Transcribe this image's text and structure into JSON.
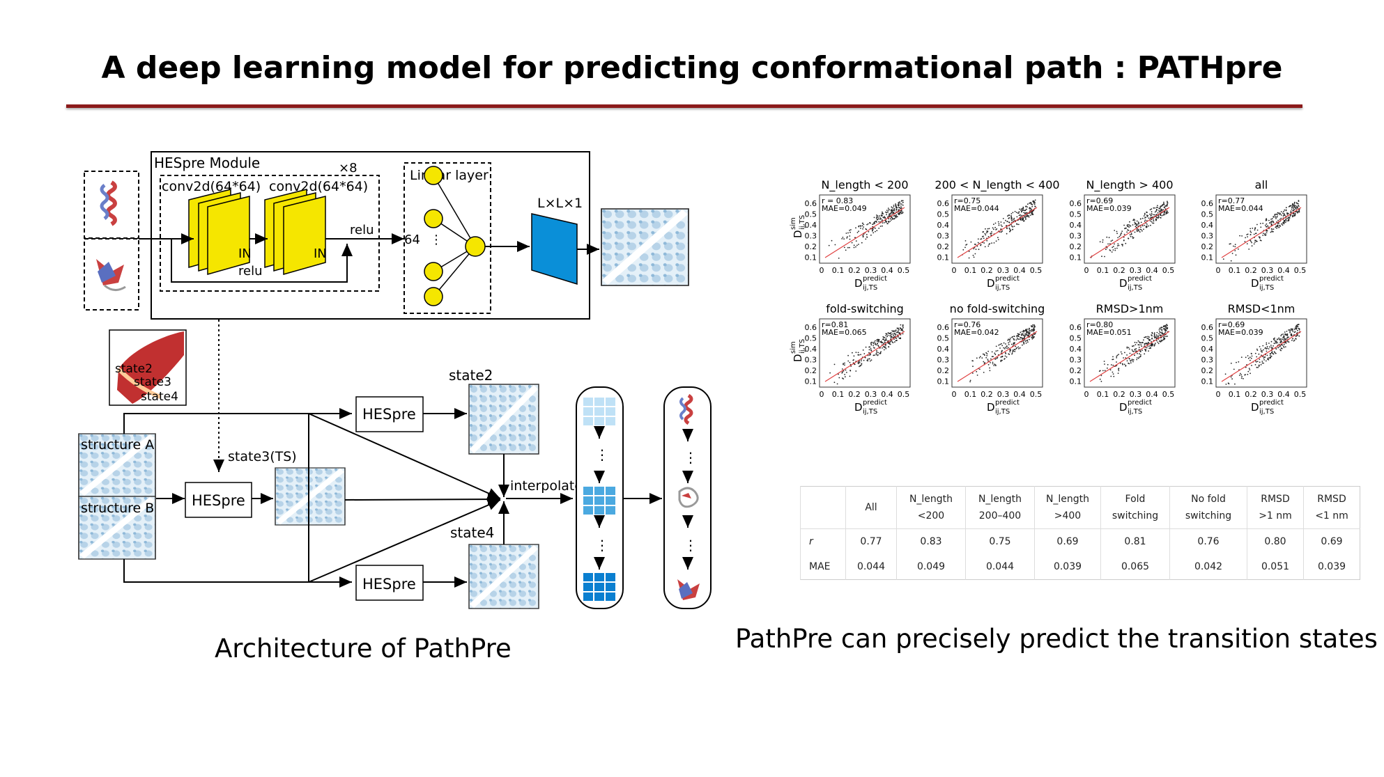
{
  "title": "A deep learning model for predicting conformational path : PATHpre",
  "captions": {
    "left": "Architecture of PathPre",
    "right": "PathPre can precisely predict the transition states"
  },
  "diagram": {
    "hespre_module_label": "HESpre Module",
    "repeat_label": "×8",
    "conv1_label": "conv2d(64*64)",
    "conv2_label": "conv2d(64*64)",
    "in_label_1": "IN",
    "in_label_2": "IN",
    "relu_label_1": "relu",
    "relu_label_2": "relu",
    "linear_layer_label": "Linear layer",
    "dim_label": "64",
    "output_label": "L×L×1",
    "state_labels": [
      "state2",
      "state3",
      "state4"
    ],
    "structure_a": "structure A",
    "structure_b": "structure B",
    "hespre_label": "HESpre",
    "state3_ts_label": "state3(TS)",
    "state2_label": "state2",
    "state4_label": "state4",
    "interpolate_label": "interpolate",
    "colors": {
      "yellow": "#f5e600",
      "blue_block": "#0a8fd8",
      "dark_red": "#8b1a1a"
    }
  },
  "scatter_panels": [
    {
      "title": "N_length < 200",
      "r": "r = 0.83",
      "mae": "MAE=0.049"
    },
    {
      "title": "200 < N_length < 400",
      "r": "r=0.75",
      "mae": "MAE=0.044"
    },
    {
      "title": "N_length > 400",
      "r": "r=0.69",
      "mae": "MAE=0.039"
    },
    {
      "title": "all",
      "r": "r=0.77",
      "mae": "MAE=0.044"
    },
    {
      "title": "fold-switching",
      "r": "r=0.81",
      "mae": "MAE=0.065"
    },
    {
      "title": "no fold-switching",
      "r": "r=0.76",
      "mae": "MAE=0.042"
    },
    {
      "title": "RMSD>1nm",
      "r": "r=0.80",
      "mae": "MAE=0.051"
    },
    {
      "title": "RMSD<1nm",
      "r": "r=0.69",
      "mae": "MAE=0.039"
    }
  ],
  "axis": {
    "x_ticks": [
      "0",
      "0.1",
      "0.2",
      "0.3",
      "0.4",
      "0.5"
    ],
    "y_ticks": [
      "0.6",
      "0.5",
      "0.4",
      "0.3",
      "0.2",
      "0.1"
    ],
    "xlabel_main": "D",
    "xlabel_sup": "predict",
    "xlabel_sub": "ij,TS",
    "ylabel_main": "D",
    "ylabel_sup": "sim",
    "ylabel_sub": "ij,TS"
  },
  "table": {
    "headers": [
      [
        "",
        ""
      ],
      [
        "All",
        ""
      ],
      [
        "N_length",
        "<200"
      ],
      [
        "N_length",
        "200–400"
      ],
      [
        "N_length",
        ">400"
      ],
      [
        "Fold",
        "switching"
      ],
      [
        "No fold",
        "switching"
      ],
      [
        "RMSD",
        ">1 nm"
      ],
      [
        "RMSD",
        "<1 nm"
      ]
    ],
    "rows": [
      {
        "label": "r",
        "values": [
          "0.77",
          "0.83",
          "0.75",
          "0.69",
          "0.81",
          "0.76",
          "0.80",
          "0.69"
        ]
      },
      {
        "label": "MAE",
        "values": [
          "0.044",
          "0.049",
          "0.044",
          "0.039",
          "0.065",
          "0.042",
          "0.051",
          "0.039"
        ]
      }
    ]
  }
}
